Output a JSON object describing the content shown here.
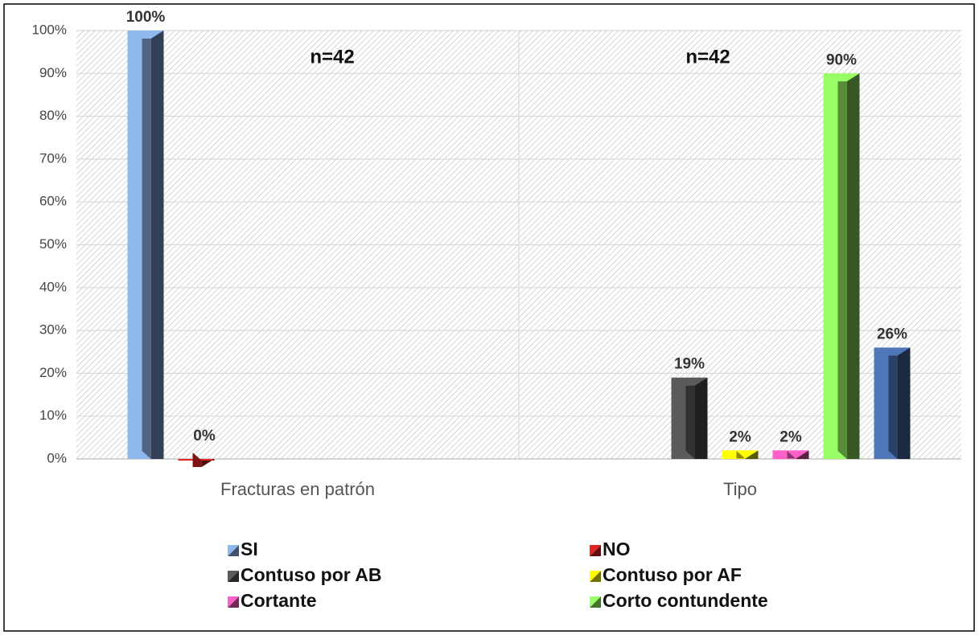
{
  "chart_data": {
    "type": "bar",
    "categories": [
      "Fracturas en patrón",
      "Tipo"
    ],
    "series": [
      {
        "name": "SI",
        "color": "#8fb8ee",
        "values": [
          100,
          null
        ],
        "value_labels": [
          "100%",
          null
        ]
      },
      {
        "name": "NO",
        "color": "#e02424",
        "values": [
          0,
          null
        ],
        "value_labels": [
          "0%",
          null
        ]
      },
      {
        "name": "Contuso por AB",
        "color": "#5a5a5a",
        "values": [
          null,
          19
        ],
        "value_labels": [
          null,
          "19%"
        ]
      },
      {
        "name": "Contuso por AF",
        "color": "#ffff00",
        "values": [
          null,
          2
        ],
        "value_labels": [
          null,
          "2%"
        ]
      },
      {
        "name": "Cortante",
        "color": "#ff5fc8",
        "values": [
          null,
          2
        ],
        "value_labels": [
          null,
          "2%"
        ]
      },
      {
        "name": "Corto contundente",
        "color": "#99ff66",
        "values": [
          null,
          90
        ],
        "value_labels": [
          null,
          "90%"
        ]
      },
      {
        "color": "#4f76b8",
        "values": [
          null,
          26
        ],
        "value_labels": [
          null,
          "26%"
        ]
      }
    ],
    "annotations": [
      "n=42",
      "n=42"
    ],
    "ylim": [
      0,
      100
    ],
    "yticks": [
      {
        "value": 0,
        "label": "0%"
      },
      {
        "value": 10,
        "label": "10%"
      },
      {
        "value": 20,
        "label": "20%"
      },
      {
        "value": 30,
        "label": "30%"
      },
      {
        "value": 40,
        "label": "40%"
      },
      {
        "value": 50,
        "label": "50%"
      },
      {
        "value": 60,
        "label": "60%"
      },
      {
        "value": 70,
        "label": "70%"
      },
      {
        "value": 80,
        "label": "80%"
      },
      {
        "value": 90,
        "label": "90%"
      },
      {
        "value": 100,
        "label": "100%"
      }
    ],
    "grid": true,
    "legend": "bottom"
  }
}
